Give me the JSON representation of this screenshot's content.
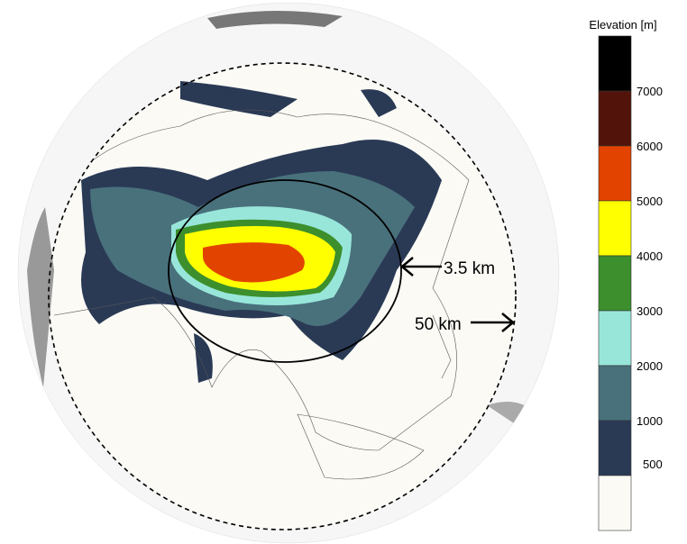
{
  "map": {
    "annotations": {
      "inner_radius_label": "3.5 km",
      "outer_radius_label": "50 km"
    }
  },
  "legend": {
    "title": "Elevation [m]",
    "ticks": [
      "7000",
      "6000",
      "5000",
      "4000",
      "3000",
      "2000",
      "1000",
      "500"
    ],
    "colors": [
      "#000000",
      "#52140a",
      "#e24400",
      "#ffff00",
      "#3c8f2c",
      "#98e6da",
      "#49717c",
      "#2a3a55",
      "#fbfaf5"
    ]
  }
}
